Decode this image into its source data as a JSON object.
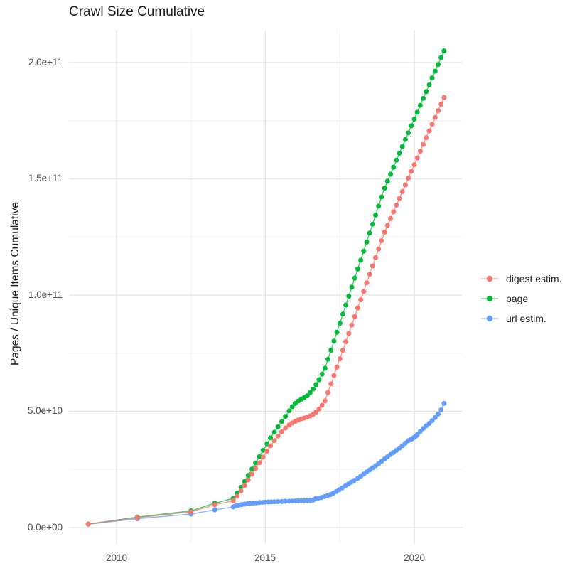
{
  "title": "Crawl Size Cumulative",
  "colors": {
    "background": "#ffffff",
    "grid_major": "#e3e3e3",
    "grid_minor": "#f0f0f0",
    "tick_text": "#4d4d4d",
    "title_text": "#1a1a1a",
    "digest": "#F8766D",
    "page": "#00BA38",
    "url": "#619CFF"
  },
  "chart_data": {
    "type": "line",
    "title": "Crawl Size Cumulative",
    "xlabel": "",
    "ylabel": "Pages / Unique Items Cumulative",
    "legend_position": "right",
    "grid": "on",
    "value_unit_e9": "values are billions (1e9) of pages / unique items",
    "xlim": [
      2008.4,
      2021.6
    ],
    "ylim_e9": [
      -6.4,
      215.6
    ],
    "x_major_ticks": [
      2010,
      2015,
      2020
    ],
    "x_minor_ticks": [
      2012.5,
      2017.5
    ],
    "x_tick_labels": [
      "2010",
      "2015",
      "2020"
    ],
    "y_major_ticks_e9": [
      0,
      50,
      100,
      150,
      200
    ],
    "y_minor_ticks_e9": [
      25,
      75,
      125,
      175
    ],
    "y_tick_labels": [
      "0.0e+00",
      "5.0e+10",
      "1.0e+11",
      "1.5e+11",
      "2.0e+11"
    ],
    "series": [
      {
        "name": "digest estim.",
        "color": "#F8766D",
        "points": [
          [
            2009.05,
            1.5
          ],
          [
            2010.7,
            4.2
          ],
          [
            2012.5,
            6.8
          ],
          [
            2013.3,
            9.8
          ],
          [
            2013.92,
            11.5
          ],
          [
            2014.05,
            13.5
          ],
          [
            2014.18,
            15.8
          ],
          [
            2014.3,
            18.1
          ],
          [
            2014.42,
            20.5
          ],
          [
            2014.55,
            23
          ],
          [
            2014.67,
            25.4
          ],
          [
            2014.8,
            27.9
          ],
          [
            2014.92,
            30.3
          ],
          [
            2015.05,
            32.8
          ],
          [
            2015.17,
            35.2
          ],
          [
            2015.3,
            37.4
          ],
          [
            2015.42,
            39.4
          ],
          [
            2015.55,
            41.2
          ],
          [
            2015.67,
            42.8
          ],
          [
            2015.8,
            44.1
          ],
          [
            2015.9,
            45
          ],
          [
            2016,
            45.7
          ],
          [
            2016.1,
            46.2
          ],
          [
            2016.2,
            46.7
          ],
          [
            2016.3,
            47.1
          ],
          [
            2016.4,
            47.5
          ],
          [
            2016.5,
            48
          ],
          [
            2016.6,
            48.7
          ],
          [
            2016.7,
            49.7
          ],
          [
            2016.8,
            51
          ],
          [
            2016.9,
            52.6
          ],
          [
            2017,
            54.5
          ],
          [
            2017.1,
            58.1
          ],
          [
            2017.2,
            61.8
          ],
          [
            2017.3,
            65.4
          ],
          [
            2017.4,
            69
          ],
          [
            2017.5,
            72.6
          ],
          [
            2017.6,
            76.3
          ],
          [
            2017.7,
            79.9
          ],
          [
            2017.8,
            83.5
          ],
          [
            2017.9,
            87.1
          ],
          [
            2018,
            90.8
          ],
          [
            2018.1,
            94.4
          ],
          [
            2018.2,
            98
          ],
          [
            2018.3,
            101.6
          ],
          [
            2018.4,
            105.3
          ],
          [
            2018.5,
            108.9
          ],
          [
            2018.6,
            112.5
          ],
          [
            2018.7,
            116.1
          ],
          [
            2018.8,
            119.8
          ],
          [
            2018.9,
            123.4
          ],
          [
            2019,
            127
          ],
          [
            2019.1,
            130
          ],
          [
            2019.2,
            132.9
          ],
          [
            2019.3,
            135.8
          ],
          [
            2019.4,
            138.7
          ],
          [
            2019.5,
            141.6
          ],
          [
            2019.6,
            144.5
          ],
          [
            2019.7,
            147.4
          ],
          [
            2019.8,
            150.3
          ],
          [
            2019.9,
            153.2
          ],
          [
            2020,
            156.1
          ],
          [
            2020.1,
            159
          ],
          [
            2020.2,
            161.9
          ],
          [
            2020.3,
            164.8
          ],
          [
            2020.4,
            167.7
          ],
          [
            2020.5,
            170.6
          ],
          [
            2020.6,
            173.5
          ],
          [
            2020.7,
            176.4
          ],
          [
            2020.8,
            179.3
          ],
          [
            2020.9,
            182.1
          ],
          [
            2021,
            185
          ]
        ]
      },
      {
        "name": "page",
        "color": "#00BA38",
        "points": [
          [
            2009.05,
            1.5
          ],
          [
            2010.7,
            4.5
          ],
          [
            2012.5,
            7.2
          ],
          [
            2013.3,
            10.5
          ],
          [
            2013.92,
            12.5
          ],
          [
            2014.05,
            14.8
          ],
          [
            2014.18,
            17.3
          ],
          [
            2014.3,
            19.8
          ],
          [
            2014.42,
            22.4
          ],
          [
            2014.55,
            25.2
          ],
          [
            2014.67,
            27.8
          ],
          [
            2014.8,
            30.5
          ],
          [
            2014.92,
            33.2
          ],
          [
            2015.05,
            36
          ],
          [
            2015.17,
            38.6
          ],
          [
            2015.3,
            41
          ],
          [
            2015.42,
            43.3
          ],
          [
            2015.55,
            45.6
          ],
          [
            2015.67,
            47.8
          ],
          [
            2015.8,
            50.2
          ],
          [
            2015.9,
            52
          ],
          [
            2016,
            53.4
          ],
          [
            2016.1,
            54.4
          ],
          [
            2016.2,
            55.2
          ],
          [
            2016.3,
            55.9
          ],
          [
            2016.4,
            56.7
          ],
          [
            2016.5,
            58
          ],
          [
            2016.6,
            59.6
          ],
          [
            2016.7,
            61.5
          ],
          [
            2016.8,
            63.6
          ],
          [
            2016.9,
            66
          ],
          [
            2017,
            68.5
          ],
          [
            2017.1,
            72.4
          ],
          [
            2017.2,
            76.3
          ],
          [
            2017.3,
            80.2
          ],
          [
            2017.4,
            84
          ],
          [
            2017.5,
            87.9
          ],
          [
            2017.6,
            91.8
          ],
          [
            2017.7,
            95.7
          ],
          [
            2017.8,
            99.5
          ],
          [
            2017.9,
            103.4
          ],
          [
            2018,
            107.3
          ],
          [
            2018.1,
            111.2
          ],
          [
            2018.2,
            115
          ],
          [
            2018.3,
            118.9
          ],
          [
            2018.4,
            122.8
          ],
          [
            2018.5,
            126.7
          ],
          [
            2018.6,
            130.5
          ],
          [
            2018.7,
            134.4
          ],
          [
            2018.8,
            138.3
          ],
          [
            2018.9,
            142.2
          ],
          [
            2019,
            146
          ],
          [
            2019.1,
            149
          ],
          [
            2019.2,
            152
          ],
          [
            2019.3,
            155
          ],
          [
            2019.4,
            158
          ],
          [
            2019.5,
            161
          ],
          [
            2019.6,
            163.9
          ],
          [
            2019.7,
            166.9
          ],
          [
            2019.8,
            169.8
          ],
          [
            2019.9,
            172.8
          ],
          [
            2020,
            175.7
          ],
          [
            2020.1,
            178.7
          ],
          [
            2020.2,
            181.6
          ],
          [
            2020.3,
            184.6
          ],
          [
            2020.4,
            187.5
          ],
          [
            2020.5,
            190.4
          ],
          [
            2020.6,
            193.4
          ],
          [
            2020.7,
            196.3
          ],
          [
            2020.8,
            199.2
          ],
          [
            2020.9,
            202.1
          ],
          [
            2021,
            205
          ]
        ]
      },
      {
        "name": "url estim.",
        "color": "#619CFF",
        "points": [
          [
            2009.05,
            1.4
          ],
          [
            2010.7,
            3.8
          ],
          [
            2012.5,
            5.8
          ],
          [
            2013.3,
            7.6
          ],
          [
            2013.92,
            8.9
          ],
          [
            2014,
            9.3
          ],
          [
            2014.1,
            9.6
          ],
          [
            2014.2,
            9.9
          ],
          [
            2014.3,
            10.1
          ],
          [
            2014.4,
            10.3
          ],
          [
            2014.5,
            10.45
          ],
          [
            2014.6,
            10.55
          ],
          [
            2014.7,
            10.65
          ],
          [
            2014.8,
            10.75
          ],
          [
            2014.9,
            10.85
          ],
          [
            2015,
            10.95
          ],
          [
            2015.1,
            11
          ],
          [
            2015.2,
            11.05
          ],
          [
            2015.3,
            11.1
          ],
          [
            2015.42,
            11.15
          ],
          [
            2015.55,
            11.2
          ],
          [
            2015.67,
            11.3
          ],
          [
            2015.8,
            11.35
          ],
          [
            2015.9,
            11.4
          ],
          [
            2016,
            11.45
          ],
          [
            2016.1,
            11.5
          ],
          [
            2016.2,
            11.55
          ],
          [
            2016.3,
            11.6
          ],
          [
            2016.4,
            11.65
          ],
          [
            2016.5,
            11.7
          ],
          [
            2016.6,
            11.8
          ],
          [
            2016.68,
            12.4
          ],
          [
            2016.78,
            12.7
          ],
          [
            2016.88,
            12.95
          ],
          [
            2016.98,
            13.3
          ],
          [
            2017.08,
            13.7
          ],
          [
            2017.18,
            14.2
          ],
          [
            2017.28,
            14.8
          ],
          [
            2017.38,
            15.5
          ],
          [
            2017.48,
            16.3
          ],
          [
            2017.58,
            17.1
          ],
          [
            2017.68,
            17.9
          ],
          [
            2017.78,
            18.7
          ],
          [
            2017.88,
            19.5
          ],
          [
            2017.98,
            20.3
          ],
          [
            2018.1,
            21.2
          ],
          [
            2018.2,
            22.1
          ],
          [
            2018.3,
            23
          ],
          [
            2018.4,
            23.9
          ],
          [
            2018.5,
            24.8
          ],
          [
            2018.6,
            25.7
          ],
          [
            2018.7,
            26.6
          ],
          [
            2018.8,
            27.5
          ],
          [
            2018.9,
            28.5
          ],
          [
            2019,
            29.5
          ],
          [
            2019.1,
            30.5
          ],
          [
            2019.2,
            31.4
          ],
          [
            2019.3,
            32.3
          ],
          [
            2019.4,
            33.2
          ],
          [
            2019.5,
            34.2
          ],
          [
            2019.6,
            35.2
          ],
          [
            2019.7,
            36.3
          ],
          [
            2019.8,
            37.4
          ],
          [
            2019.9,
            38
          ],
          [
            2019.95,
            38.4
          ],
          [
            2020,
            38.8
          ],
          [
            2020.05,
            39.3
          ],
          [
            2020.1,
            40
          ],
          [
            2020.2,
            41.3
          ],
          [
            2020.3,
            42.6
          ],
          [
            2020.4,
            43.8
          ],
          [
            2020.5,
            44.8
          ],
          [
            2020.6,
            46
          ],
          [
            2020.7,
            47.3
          ],
          [
            2020.8,
            48.8
          ],
          [
            2020.9,
            50.6
          ],
          [
            2021,
            53.4
          ]
        ]
      }
    ]
  }
}
